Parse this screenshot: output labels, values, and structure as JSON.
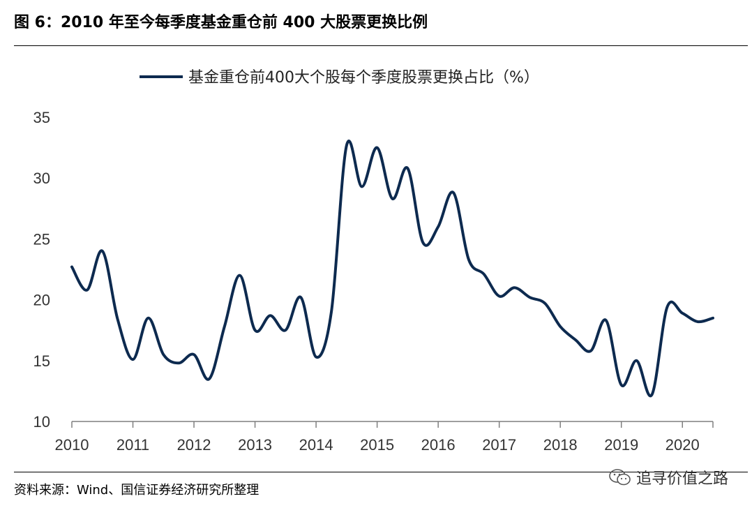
{
  "figure": {
    "title": "图 6：2010 年至今每季度基金重仓前 400 大股票更换比例",
    "source": "资料来源：Wind、国信证券经济研究所整理",
    "watermark": "追寻价值之路"
  },
  "colors": {
    "line": "#0d2a4f",
    "axis": "#7f7f7f"
  },
  "chart_data": {
    "type": "line",
    "title": "",
    "xlabel": "",
    "ylabel": "",
    "legend_position": "top",
    "grid": false,
    "ylim": [
      10,
      35
    ],
    "yticks": [
      10,
      15,
      20,
      25,
      30,
      35
    ],
    "xticks": [
      "2010",
      "2011",
      "2012",
      "2013",
      "2014",
      "2015",
      "2016",
      "2017",
      "2018",
      "2019",
      "2020"
    ],
    "xlim": [
      2010.0,
      2020.5
    ],
    "series": [
      {
        "name": "基金重仓前400大个股每个季度股票更换占比（%）",
        "x": [
          2010.0,
          2010.25,
          2010.5,
          2010.75,
          2011.0,
          2011.25,
          2011.5,
          2011.75,
          2012.0,
          2012.25,
          2012.5,
          2012.75,
          2013.0,
          2013.25,
          2013.5,
          2013.75,
          2014.0,
          2014.25,
          2014.5,
          2014.75,
          2015.0,
          2015.25,
          2015.5,
          2015.75,
          2016.0,
          2016.25,
          2016.5,
          2016.75,
          2017.0,
          2017.25,
          2017.5,
          2017.75,
          2018.0,
          2018.25,
          2018.5,
          2018.75,
          2019.0,
          2019.25,
          2019.5,
          2019.75,
          2020.0,
          2020.25,
          2020.5
        ],
        "y": [
          22.7,
          20.8,
          24.0,
          18.4,
          15.1,
          18.5,
          15.5,
          14.8,
          15.5,
          13.5,
          17.8,
          22.0,
          17.5,
          18.7,
          17.5,
          20.2,
          15.3,
          19.0,
          32.7,
          29.3,
          32.5,
          28.3,
          30.8,
          24.7,
          26.0,
          28.8,
          23.3,
          22.1,
          20.3,
          21.0,
          20.2,
          19.7,
          17.8,
          16.7,
          15.8,
          18.3,
          13.0,
          15.0,
          12.2,
          19.4,
          18.9,
          18.2,
          18.5
        ]
      }
    ]
  }
}
